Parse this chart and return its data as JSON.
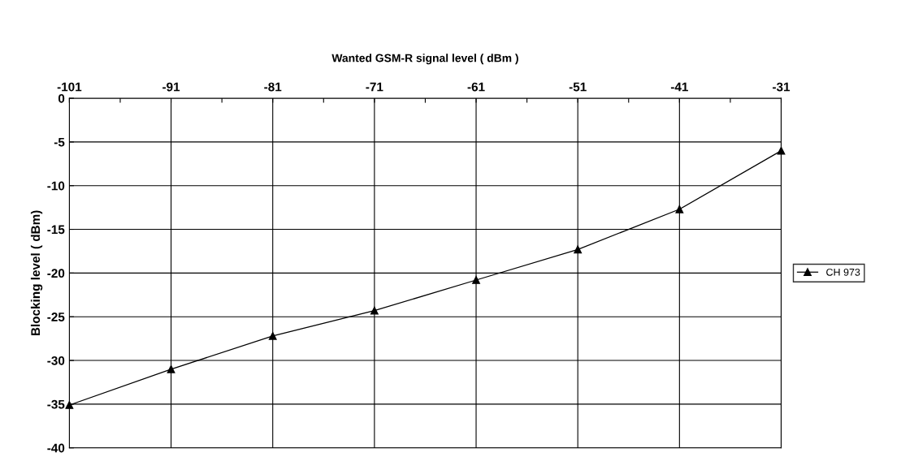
{
  "chart_data": {
    "type": "line",
    "xlabel": "Wanted GSM-R signal level ( dBm )",
    "ylabel": "Blocking level ( dBm)",
    "xlim": [
      -101,
      -31
    ],
    "xticks": [
      -101,
      {
        "value": -96,
        "label": null
      },
      -91,
      {
        "value": -86,
        "label": null
      },
      -81,
      {
        "value": -76,
        "label": null
      },
      -71,
      {
        "value": -66,
        "label": null
      },
      -61,
      {
        "value": -56,
        "label": null
      },
      -51,
      {
        "value": -46,
        "label": null
      },
      -41,
      {
        "value": -36,
        "label": null
      },
      -31
    ],
    "ylim": [
      -40,
      0
    ],
    "yticks": [
      0,
      -5,
      -10,
      -15,
      -20,
      -25,
      -30,
      -35,
      -40
    ],
    "grid": true,
    "legend": "right",
    "marker": "triangle",
    "line_style": "solid",
    "series": [
      {
        "name": "CH 973",
        "color": "#000000",
        "x": [
          -101,
          -91,
          -81,
          -71,
          -61,
          -51,
          -41,
          -31
        ],
        "values": [
          -35.1,
          -31.0,
          -27.2,
          -24.3,
          -20.8,
          -17.3,
          -12.7,
          -6.0
        ]
      }
    ]
  }
}
